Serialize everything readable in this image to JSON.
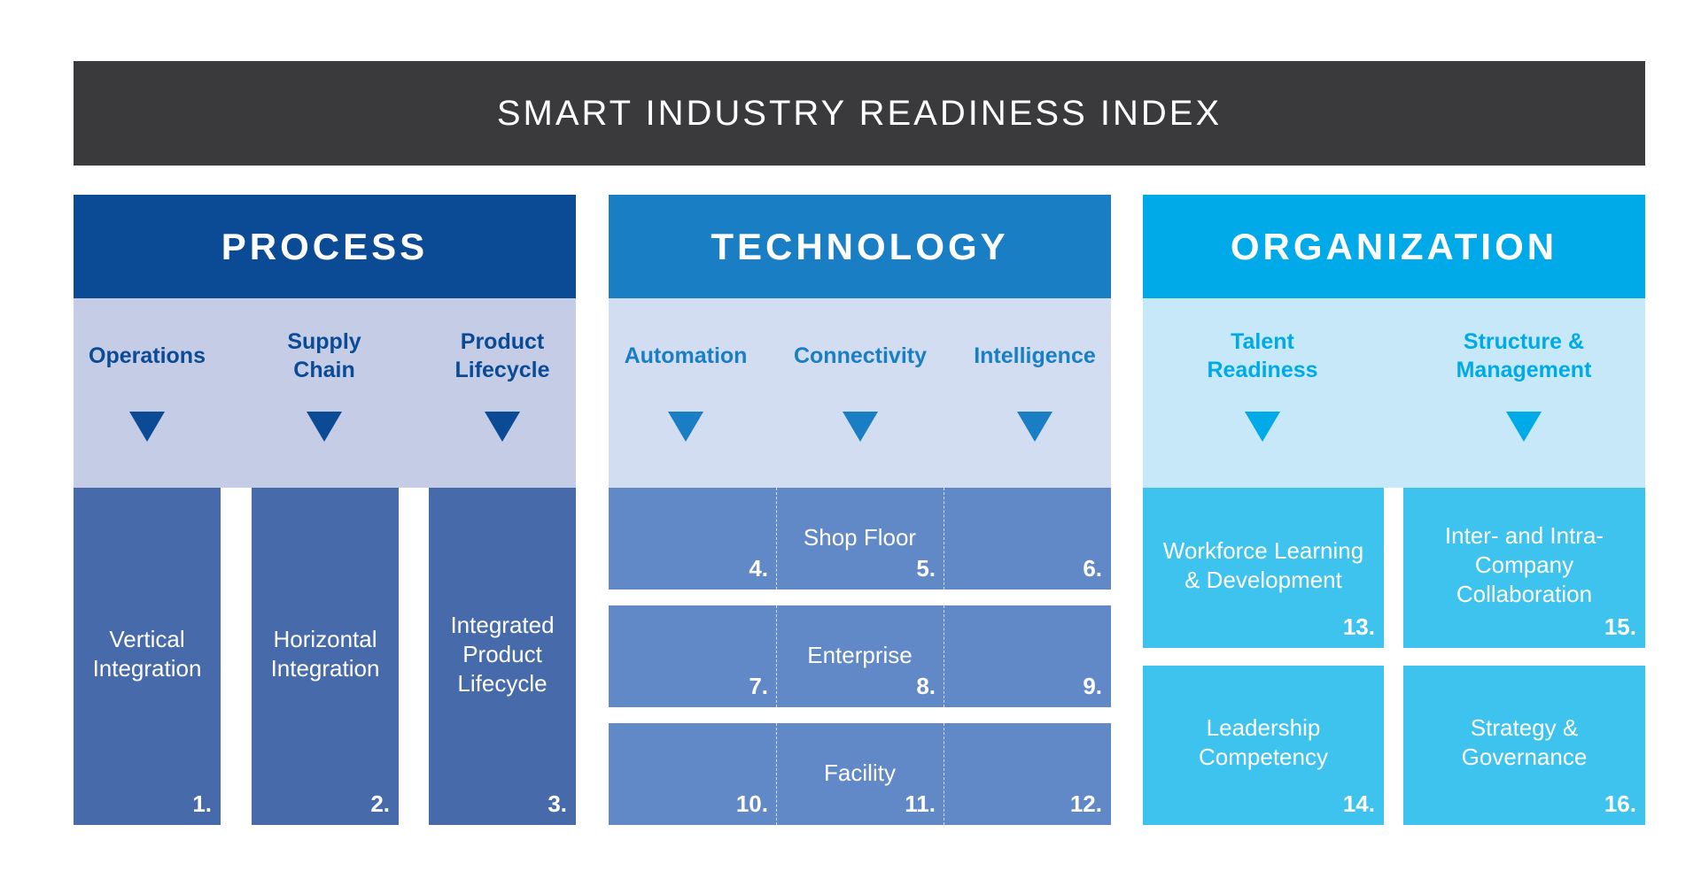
{
  "title": "SMART INDUSTRY READINESS INDEX",
  "colors": {
    "title_bar": "#3a3a3c",
    "process_head": "#0b4b96",
    "process_band": "#c5cde6",
    "process_box": "#476baa",
    "technology_head": "#1a7ec4",
    "technology_band": "#d2ddf1",
    "technology_box": "#6289c7",
    "organization_head": "#00a9e8",
    "organization_band": "#c6e8f8",
    "organization_box": "#3ec3ef"
  },
  "pillars": {
    "process": {
      "title": "PROCESS",
      "dimensions": [
        "Operations",
        "Supply Chain",
        "Product Lifecycle"
      ],
      "areas": [
        {
          "label": "Vertical Integration",
          "number": "1."
        },
        {
          "label": "Horizontal Integration",
          "number": "2."
        },
        {
          "label": "Integrated Product Lifecycle",
          "number": "3."
        }
      ]
    },
    "technology": {
      "title": "TECHNOLOGY",
      "dimensions": [
        "Automation",
        "Connectivity",
        "Intelligence"
      ],
      "rows": [
        {
          "label": "Shop Floor",
          "numbers": [
            "4.",
            "5.",
            "6."
          ]
        },
        {
          "label": "Enterprise",
          "numbers": [
            "7.",
            "8.",
            "9."
          ]
        },
        {
          "label": "Facility",
          "numbers": [
            "10.",
            "11.",
            "12."
          ]
        }
      ]
    },
    "organization": {
      "title": "ORGANIZATION",
      "dimensions": [
        "Talent Readiness",
        "Structure & Management"
      ],
      "areas": [
        {
          "label": "Workforce Learning & Development",
          "number": "13."
        },
        {
          "label": "Inter- and Intra- Company Collaboration",
          "number": "15."
        },
        {
          "label": "Leadership Competency",
          "number": "14."
        },
        {
          "label": "Strategy & Governance",
          "number": "16."
        }
      ]
    }
  }
}
